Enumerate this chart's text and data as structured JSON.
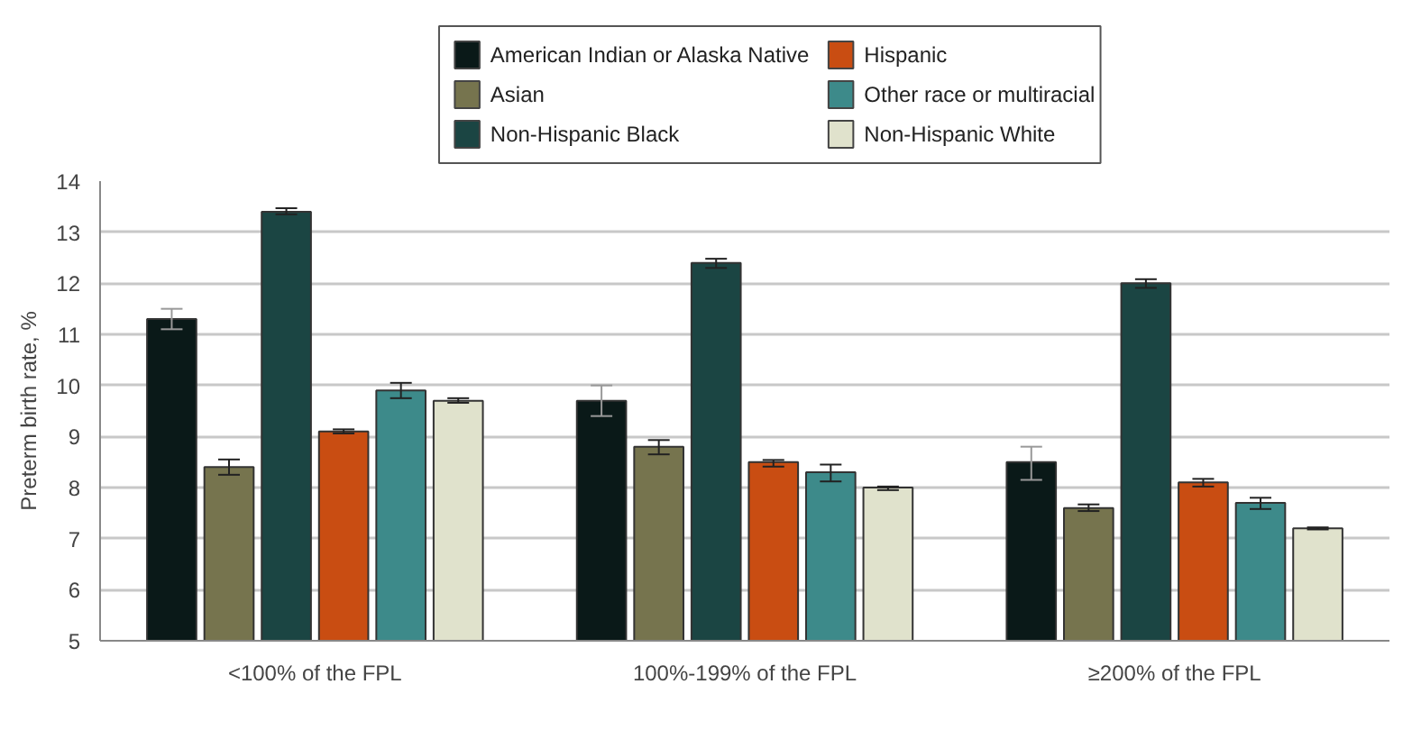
{
  "chart_data": {
    "type": "bar",
    "ylabel": "Preterm birth rate, %",
    "categories": [
      "<100% of the FPL",
      "100%-199% of the FPL",
      "≥200% of the FPL"
    ],
    "ylim": [
      5,
      14
    ],
    "yticks": [
      5,
      6,
      7,
      8,
      9,
      10,
      11,
      12,
      13,
      14
    ],
    "grid": "y",
    "legend": "top",
    "series": [
      {
        "name": "American Indian or Alaska Native",
        "color": "#0a1918",
        "values": [
          11.3,
          9.7,
          8.5
        ],
        "errors": [
          [
            11.1,
            11.5
          ],
          [
            9.4,
            10.0
          ],
          [
            8.15,
            8.8
          ]
        ]
      },
      {
        "name": "Asian",
        "color": "#76744e",
        "values": [
          8.4,
          8.8,
          7.6
        ],
        "errors": [
          [
            8.25,
            8.55
          ],
          [
            8.65,
            8.93
          ],
          [
            7.54,
            7.67
          ]
        ]
      },
      {
        "name": "Non-Hispanic Black",
        "color": "#1b4543",
        "values": [
          13.4,
          12.4,
          12.0
        ],
        "errors": [
          [
            13.35,
            13.47
          ],
          [
            12.3,
            12.48
          ],
          [
            11.91,
            12.08
          ]
        ]
      },
      {
        "name": "Hispanic",
        "color": "#c94d12",
        "values": [
          9.1,
          8.5,
          8.1
        ],
        "errors": [
          [
            9.06,
            9.14
          ],
          [
            8.41,
            8.54
          ],
          [
            8.02,
            8.17
          ]
        ]
      },
      {
        "name": "Other race or multiracial",
        "color": "#3d8a8a",
        "values": [
          9.9,
          8.3,
          7.7
        ],
        "errors": [
          [
            9.75,
            10.05
          ],
          [
            8.12,
            8.45
          ],
          [
            7.58,
            7.8
          ]
        ]
      },
      {
        "name": "Non-Hispanic White",
        "color": "#e0e2cc",
        "values": [
          9.7,
          8.0,
          7.2
        ],
        "errors": [
          [
            9.66,
            9.75
          ],
          [
            7.95,
            8.02
          ],
          [
            7.18,
            7.22
          ]
        ]
      }
    ]
  }
}
